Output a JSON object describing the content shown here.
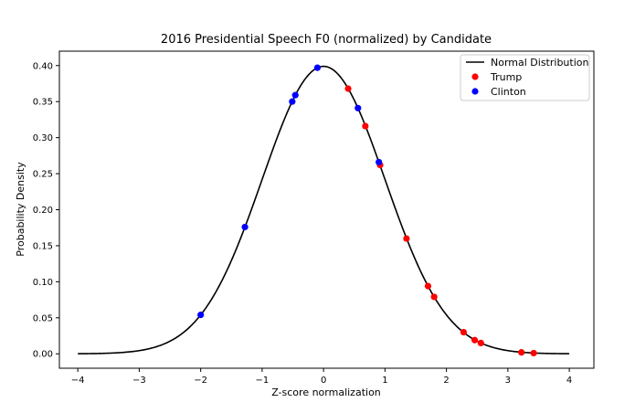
{
  "chart_data": {
    "type": "scatter",
    "title": "2016 Presidential Speech F0 (normalized) by Candidate",
    "xlabel": "Z-score normalization",
    "ylabel": "Probability Density",
    "xlim": [
      -4.3,
      4.4
    ],
    "ylim": [
      -0.02,
      0.42
    ],
    "x_ticks": [
      -4,
      -3,
      -2,
      -1,
      0,
      1,
      2,
      3,
      4
    ],
    "x_tick_labels": [
      "−4",
      "−3",
      "−2",
      "−1",
      "0",
      "1",
      "2",
      "3",
      "4"
    ],
    "y_ticks": [
      0.0,
      0.05,
      0.1,
      0.15,
      0.2,
      0.25,
      0.3,
      0.35,
      0.4
    ],
    "y_tick_labels": [
      "0.00",
      "0.05",
      "0.10",
      "0.15",
      "0.20",
      "0.25",
      "0.30",
      "0.35",
      "0.40"
    ],
    "grid": false,
    "legend_position": "top-right",
    "curve": {
      "name": "Normal Distribution",
      "color": "#000000",
      "x_range": [
        -4,
        4
      ],
      "mean": 0,
      "std": 1
    },
    "series": [
      {
        "name": "Trump",
        "color": "#ff0000",
        "points": [
          {
            "x": 0.4,
            "y": 0.368
          },
          {
            "x": 0.68,
            "y": 0.316
          },
          {
            "x": 0.92,
            "y": 0.262
          },
          {
            "x": 1.35,
            "y": 0.16
          },
          {
            "x": 1.7,
            "y": 0.094
          },
          {
            "x": 1.8,
            "y": 0.079
          },
          {
            "x": 2.28,
            "y": 0.03
          },
          {
            "x": 2.46,
            "y": 0.019
          },
          {
            "x": 2.56,
            "y": 0.015
          },
          {
            "x": 3.22,
            "y": 0.002
          },
          {
            "x": 3.42,
            "y": 0.001
          }
        ]
      },
      {
        "name": "Clinton",
        "color": "#0000ff",
        "points": [
          {
            "x": -2.0,
            "y": 0.054
          },
          {
            "x": -1.28,
            "y": 0.176
          },
          {
            "x": -0.51,
            "y": 0.35
          },
          {
            "x": -0.46,
            "y": 0.359
          },
          {
            "x": -0.1,
            "y": 0.397
          },
          {
            "x": 0.56,
            "y": 0.341
          },
          {
            "x": 0.9,
            "y": 0.266
          }
        ]
      }
    ]
  }
}
